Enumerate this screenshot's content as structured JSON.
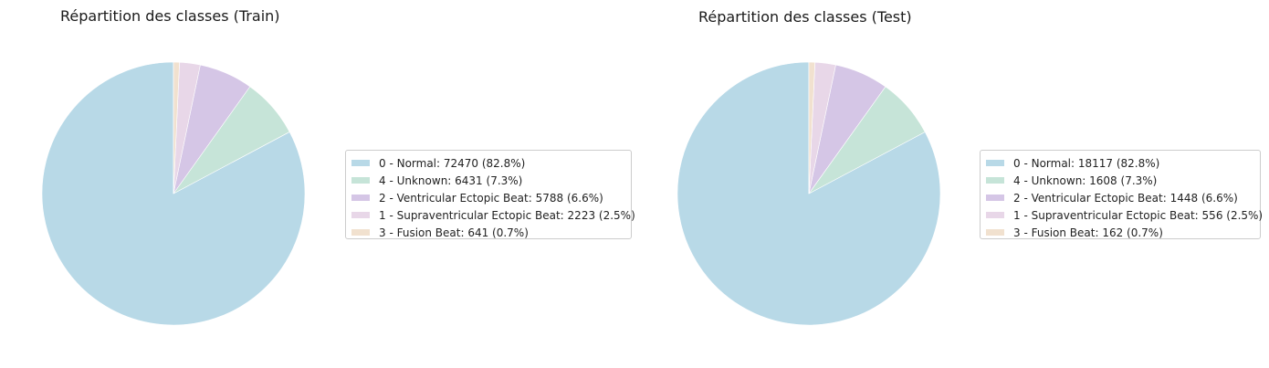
{
  "chart_data": [
    {
      "type": "pie",
      "title": "Répartition des classes (Train)",
      "legend_position": "right",
      "slices": [
        {
          "label": "0 - Normal: 72470 (82.8%)",
          "value": 72470,
          "color": "#b8d9e7"
        },
        {
          "label": "4 - Unknown: 6431 (7.3%)",
          "value": 6431,
          "color": "#c6e4d8"
        },
        {
          "label": "2 - Ventricular Ectopic Beat: 5788 (6.6%)",
          "value": 5788,
          "color": "#d5c6e6"
        },
        {
          "label": "1 - Supraventricular Ectopic Beat: 2223 (2.5%)",
          "value": 2223,
          "color": "#e8d7e8"
        },
        {
          "label": "3 - Fusion Beat: 641 (0.7%)",
          "value": 641,
          "color": "#f1e1cf"
        }
      ]
    },
    {
      "type": "pie",
      "title": "Répartition des classes (Test)",
      "legend_position": "right",
      "slices": [
        {
          "label": "0 - Normal: 18117 (82.8%)",
          "value": 18117,
          "color": "#b8d9e7"
        },
        {
          "label": "4 - Unknown: 1608 (7.3%)",
          "value": 1608,
          "color": "#c6e4d8"
        },
        {
          "label": "2 - Ventricular Ectopic Beat: 1448 (6.6%)",
          "value": 1448,
          "color": "#d5c6e6"
        },
        {
          "label": "1 - Supraventricular Ectopic Beat: 556 (2.5%)",
          "value": 556,
          "color": "#e8d7e8"
        },
        {
          "label": "3 - Fusion Beat: 162 (0.7%)",
          "value": 162,
          "color": "#f1e1cf"
        }
      ]
    }
  ]
}
